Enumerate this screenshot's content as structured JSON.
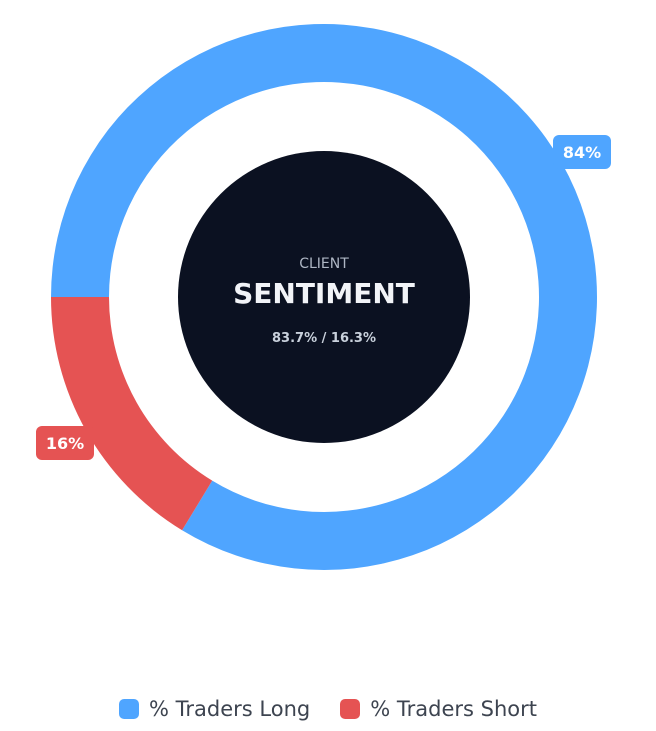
{
  "center": {
    "overline": "CLIENT",
    "title": "SENTIMENT",
    "ratio": "83.7% / 16.3%"
  },
  "chart_data": {
    "type": "pie",
    "series": [
      {
        "name": "% Traders Long",
        "value": 83.7,
        "label": "84%",
        "color": "#4fa5ff"
      },
      {
        "name": "% Traders Short",
        "value": 16.3,
        "label": "16%",
        "color": "#e55353"
      }
    ]
  },
  "colors": {
    "center_fill": "#0b1121",
    "center_overline": "#aeb6c4",
    "center_title": "#f2f4f8",
    "center_ratio": "#c9d1dc"
  }
}
